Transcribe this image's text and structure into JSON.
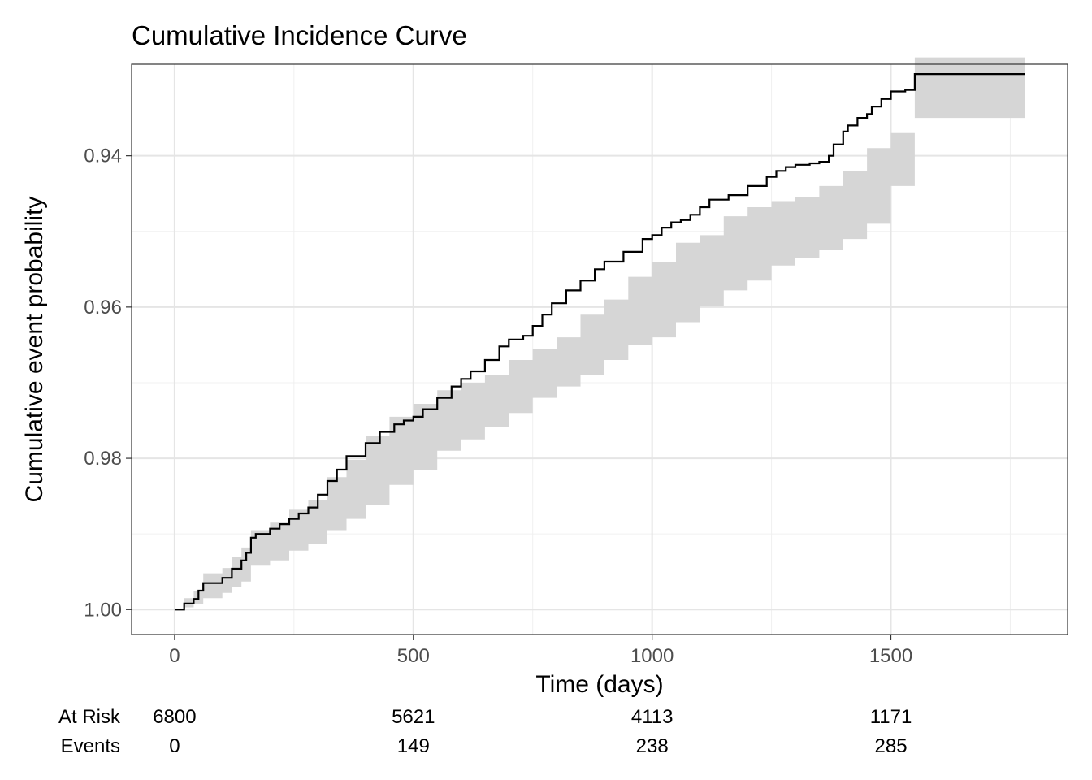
{
  "chart_data": {
    "type": "line",
    "title": "Cumulative Incidence Curve",
    "xlabel": "Time (days)",
    "ylabel": "Cumulative event probability",
    "xlim": [
      -90,
      1870
    ],
    "ylim": [
      1.0033,
      0.9279
    ],
    "y_axis_reversed": true,
    "x_ticks": [
      0,
      500,
      1000,
      1500
    ],
    "x_tick_labels": [
      "0",
      "500",
      "1000",
      "1500"
    ],
    "y_ticks": [
      0.94,
      0.96,
      0.98,
      1.0
    ],
    "y_tick_labels": [
      "0.94",
      "0.96",
      "0.98",
      "1.00"
    ],
    "grid": true,
    "line_color": "#000000",
    "band_color": "#d6d6d6",
    "series": [
      {
        "x": [
          0,
          20,
          40,
          50,
          60,
          100,
          120,
          140,
          150,
          160,
          170,
          200,
          220,
          240,
          260,
          280,
          300,
          320,
          340,
          360,
          400,
          430,
          460,
          480,
          500,
          520,
          550,
          580,
          600,
          620,
          650,
          680,
          700,
          730,
          750,
          770,
          790,
          820,
          850,
          880,
          900,
          940,
          980,
          1000,
          1020,
          1040,
          1060,
          1080,
          1100,
          1120,
          1160,
          1200,
          1240,
          1260,
          1280,
          1300,
          1330,
          1350,
          1370,
          1380,
          1400,
          1410,
          1430,
          1450,
          1460,
          1480,
          1500,
          1530,
          1550,
          1780
        ],
        "y": [
          1.0,
          0.9992,
          0.9986,
          0.9975,
          0.9965,
          0.9958,
          0.9946,
          0.9935,
          0.9925,
          0.9905,
          0.99,
          0.9893,
          0.9887,
          0.988,
          0.9873,
          0.9865,
          0.9848,
          0.983,
          0.9815,
          0.9797,
          0.978,
          0.9765,
          0.9755,
          0.975,
          0.9745,
          0.9735,
          0.972,
          0.9705,
          0.9695,
          0.9685,
          0.967,
          0.9652,
          0.9643,
          0.9638,
          0.9625,
          0.961,
          0.9595,
          0.9578,
          0.9565,
          0.955,
          0.954,
          0.9527,
          0.951,
          0.9505,
          0.9495,
          0.9488,
          0.9485,
          0.9478,
          0.9468,
          0.9458,
          0.9452,
          0.944,
          0.9428,
          0.942,
          0.9415,
          0.9412,
          0.941,
          0.9408,
          0.94,
          0.9385,
          0.9368,
          0.936,
          0.935,
          0.9345,
          0.9335,
          0.9325,
          0.9315,
          0.9313,
          0.9292,
          0.9292
        ]
      }
    ],
    "band": {
      "x": [
        0,
        20,
        40,
        60,
        100,
        120,
        140,
        160,
        200,
        240,
        280,
        320,
        360,
        400,
        450,
        500,
        550,
        600,
        650,
        700,
        750,
        800,
        850,
        900,
        950,
        1000,
        1050,
        1100,
        1150,
        1200,
        1250,
        1300,
        1350,
        1400,
        1450,
        1500,
        1550,
        1780
      ],
      "upper": [
        1.0,
        0.9997,
        0.9993,
        0.9985,
        0.9978,
        0.997,
        0.9963,
        0.9942,
        0.9935,
        0.9922,
        0.9913,
        0.9895,
        0.988,
        0.9862,
        0.9835,
        0.9815,
        0.979,
        0.9775,
        0.9758,
        0.974,
        0.972,
        0.9705,
        0.969,
        0.967,
        0.965,
        0.964,
        0.962,
        0.9598,
        0.9578,
        0.9565,
        0.9545,
        0.9535,
        0.9525,
        0.951,
        0.949,
        0.944,
        0.935,
        0.935
      ],
      "lower": [
        1.0,
        0.9985,
        0.9975,
        0.9952,
        0.9945,
        0.993,
        0.9918,
        0.9895,
        0.9885,
        0.9868,
        0.9855,
        0.9825,
        0.9802,
        0.977,
        0.9745,
        0.9728,
        0.971,
        0.97,
        0.969,
        0.967,
        0.9655,
        0.964,
        0.961,
        0.959,
        0.956,
        0.954,
        0.9515,
        0.9505,
        0.948,
        0.9468,
        0.946,
        0.9455,
        0.944,
        0.942,
        0.939,
        0.937,
        0.927,
        0.927
      ]
    },
    "risk_table": {
      "at_risk_label": "At Risk",
      "events_label": "Events",
      "times": [
        0,
        500,
        1000,
        1500
      ],
      "at_risk": [
        "6800",
        "5621",
        "4113",
        "1171"
      ],
      "events": [
        "0",
        "149",
        "238",
        "285"
      ]
    }
  }
}
